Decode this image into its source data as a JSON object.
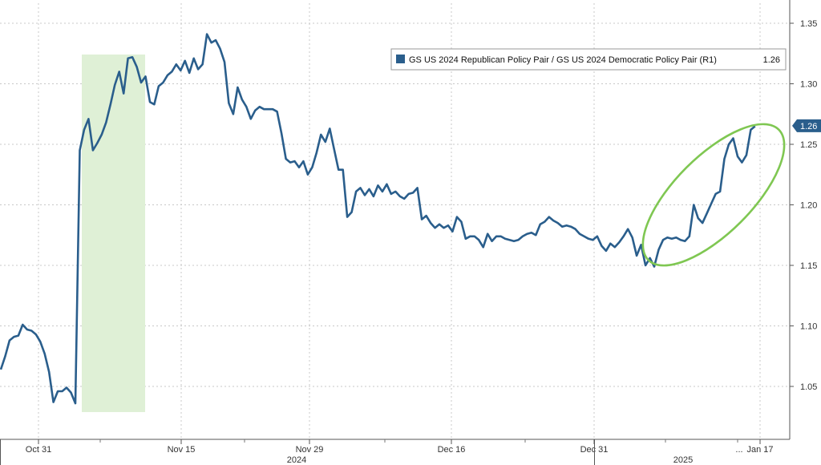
{
  "chart_data": {
    "type": "line",
    "title": "",
    "xlabel": "",
    "ylabel": "",
    "ylim": [
      1.02,
      1.37
    ],
    "y_axis_side": "right",
    "y_ticks": [
      "1.35",
      "1.30",
      "1.25",
      "1.20",
      "1.15",
      "1.10",
      "1.05"
    ],
    "x_tick_labels": [
      "Oct 31",
      "Nov 15",
      "Nov 29",
      "Dec 16",
      "Dec 31",
      "Jan 17"
    ],
    "x_ellipsis": "...",
    "year_labels": [
      "2024",
      "2025"
    ],
    "grid": true,
    "legend": {
      "position": "top-right",
      "text": "GS US 2024 Republican Policy Pair / GS US 2024 Democratic Policy Pair (R1)",
      "value": "1.26"
    },
    "last_value_label": "1.26",
    "colors": {
      "line": "#2a5e8c",
      "highlight_fill": "#dff0d6",
      "ellipse": "#7fc752",
      "last_badge": "#2a5e8c",
      "grid": "#c8c8c8"
    },
    "highlight_region": {
      "x_start": "Nov 5",
      "x_end": "Nov 13",
      "note": "shaded election window"
    },
    "ellipse_annotation": {
      "x_start": "Jan 8",
      "x_end": "Jan 17",
      "y_range": [
        1.14,
        1.27
      ]
    },
    "series": [
      {
        "name": "GS US 2024 Republican Policy Pair / GS US 2024 Democratic Policy Pair (R1)",
        "points": [
          [
            0,
            1.064
          ],
          [
            1,
            1.075
          ],
          [
            2,
            1.088
          ],
          [
            3,
            1.091
          ],
          [
            4,
            1.092
          ],
          [
            5,
            1.101
          ],
          [
            6,
            1.097
          ],
          [
            7,
            1.096
          ],
          [
            8,
            1.093
          ],
          [
            9,
            1.087
          ],
          [
            10,
            1.077
          ],
          [
            11,
            1.062
          ],
          [
            12,
            1.037
          ],
          [
            13,
            1.046
          ],
          [
            14,
            1.046
          ],
          [
            15,
            1.049
          ],
          [
            16,
            1.045
          ],
          [
            17,
            1.036
          ],
          [
            18,
            1.245
          ],
          [
            19,
            1.262
          ],
          [
            20,
            1.271
          ],
          [
            21,
            1.245
          ],
          [
            22,
            1.251
          ],
          [
            23,
            1.258
          ],
          [
            24,
            1.268
          ],
          [
            25,
            1.283
          ],
          [
            26,
            1.299
          ],
          [
            27,
            1.31
          ],
          [
            28,
            1.292
          ],
          [
            29,
            1.321
          ],
          [
            30,
            1.322
          ],
          [
            31,
            1.314
          ],
          [
            32,
            1.301
          ],
          [
            33,
            1.306
          ],
          [
            34,
            1.285
          ],
          [
            35,
            1.283
          ],
          [
            36,
            1.298
          ],
          [
            37,
            1.301
          ],
          [
            38,
            1.307
          ],
          [
            39,
            1.31
          ],
          [
            40,
            1.316
          ],
          [
            41,
            1.311
          ],
          [
            42,
            1.319
          ],
          [
            43,
            1.309
          ],
          [
            44,
            1.321
          ],
          [
            45,
            1.312
          ],
          [
            46,
            1.316
          ],
          [
            47,
            1.341
          ],
          [
            48,
            1.334
          ],
          [
            49,
            1.336
          ],
          [
            50,
            1.329
          ],
          [
            51,
            1.318
          ],
          [
            52,
            1.284
          ],
          [
            53,
            1.275
          ],
          [
            54,
            1.297
          ],
          [
            55,
            1.287
          ],
          [
            56,
            1.281
          ],
          [
            57,
            1.271
          ],
          [
            58,
            1.278
          ],
          [
            59,
            1.281
          ],
          [
            60,
            1.279
          ],
          [
            61,
            1.279
          ],
          [
            62,
            1.279
          ],
          [
            63,
            1.277
          ],
          [
            64,
            1.259
          ],
          [
            65,
            1.238
          ],
          [
            66,
            1.235
          ],
          [
            67,
            1.236
          ],
          [
            68,
            1.231
          ],
          [
            69,
            1.236
          ],
          [
            70,
            1.225
          ],
          [
            71,
            1.231
          ],
          [
            72,
            1.243
          ],
          [
            73,
            1.258
          ],
          [
            74,
            1.252
          ],
          [
            75,
            1.263
          ],
          [
            76,
            1.246
          ],
          [
            77,
            1.229
          ],
          [
            78,
            1.229
          ],
          [
            79,
            1.19
          ],
          [
            80,
            1.194
          ],
          [
            81,
            1.211
          ],
          [
            82,
            1.214
          ],
          [
            83,
            1.208
          ],
          [
            84,
            1.213
          ],
          [
            85,
            1.207
          ],
          [
            86,
            1.216
          ],
          [
            87,
            1.211
          ],
          [
            88,
            1.217
          ],
          [
            89,
            1.209
          ],
          [
            90,
            1.211
          ],
          [
            91,
            1.207
          ],
          [
            92,
            1.205
          ],
          [
            93,
            1.209
          ],
          [
            94,
            1.21
          ],
          [
            95,
            1.214
          ],
          [
            96,
            1.188
          ],
          [
            97,
            1.191
          ],
          [
            98,
            1.185
          ],
          [
            99,
            1.181
          ],
          [
            100,
            1.184
          ],
          [
            101,
            1.181
          ],
          [
            102,
            1.183
          ],
          [
            103,
            1.178
          ],
          [
            104,
            1.19
          ],
          [
            105,
            1.186
          ],
          [
            106,
            1.172
          ],
          [
            107,
            1.174
          ],
          [
            108,
            1.174
          ],
          [
            109,
            1.171
          ],
          [
            110,
            1.165
          ],
          [
            111,
            1.176
          ],
          [
            112,
            1.17
          ],
          [
            113,
            1.174
          ],
          [
            114,
            1.174
          ],
          [
            115,
            1.172
          ],
          [
            116,
            1.171
          ],
          [
            117,
            1.17
          ],
          [
            118,
            1.171
          ],
          [
            119,
            1.174
          ],
          [
            120,
            1.176
          ],
          [
            121,
            1.177
          ],
          [
            122,
            1.175
          ],
          [
            123,
            1.184
          ],
          [
            124,
            1.186
          ],
          [
            125,
            1.19
          ],
          [
            126,
            1.187
          ],
          [
            127,
            1.185
          ],
          [
            128,
            1.182
          ],
          [
            129,
            1.183
          ],
          [
            130,
            1.182
          ],
          [
            131,
            1.18
          ],
          [
            132,
            1.176
          ],
          [
            133,
            1.174
          ],
          [
            134,
            1.172
          ],
          [
            135,
            1.171
          ],
          [
            136,
            1.174
          ],
          [
            137,
            1.166
          ],
          [
            138,
            1.162
          ],
          [
            139,
            1.168
          ],
          [
            140,
            1.165
          ],
          [
            141,
            1.169
          ],
          [
            142,
            1.174
          ],
          [
            143,
            1.18
          ],
          [
            144,
            1.173
          ],
          [
            145,
            1.158
          ],
          [
            146,
            1.167
          ],
          [
            147,
            1.15
          ],
          [
            148,
            1.156
          ],
          [
            149,
            1.149
          ],
          [
            150,
            1.163
          ],
          [
            151,
            1.171
          ],
          [
            152,
            1.173
          ],
          [
            153,
            1.172
          ],
          [
            154,
            1.173
          ],
          [
            155,
            1.171
          ],
          [
            156,
            1.17
          ],
          [
            157,
            1.174
          ],
          [
            158,
            1.2
          ],
          [
            159,
            1.189
          ],
          [
            160,
            1.185
          ],
          [
            161,
            1.193
          ],
          [
            162,
            1.201
          ],
          [
            163,
            1.209
          ],
          [
            164,
            1.211
          ],
          [
            165,
            1.238
          ],
          [
            166,
            1.25
          ],
          [
            167,
            1.255
          ],
          [
            168,
            1.24
          ],
          [
            169,
            1.235
          ],
          [
            170,
            1.241
          ],
          [
            171,
            1.262
          ],
          [
            172,
            1.265
          ]
        ]
      }
    ]
  }
}
